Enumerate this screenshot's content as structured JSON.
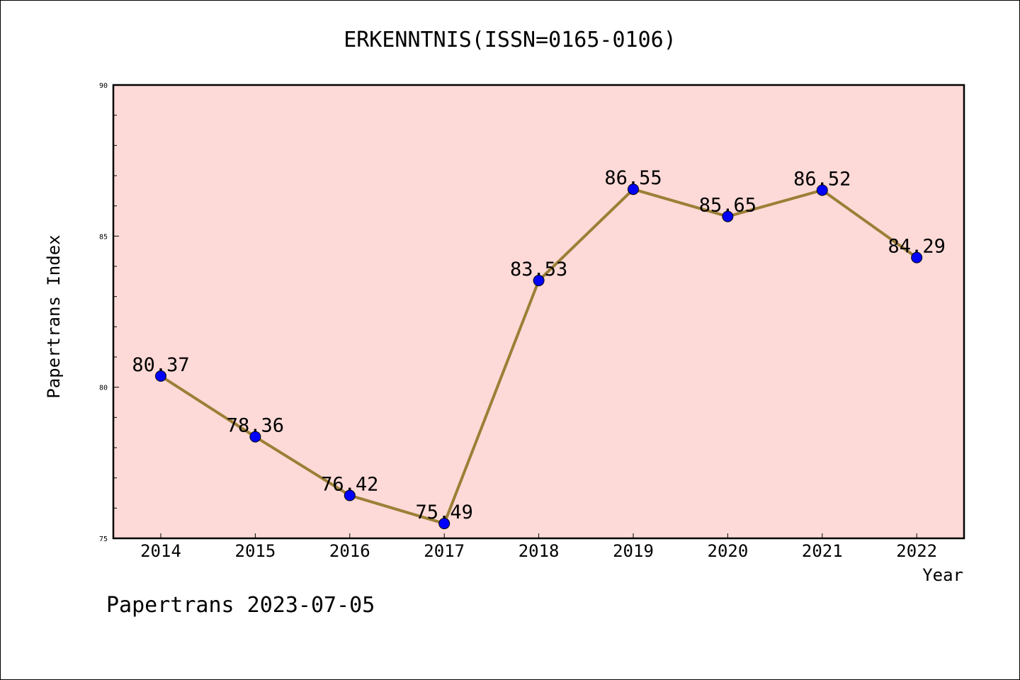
{
  "chart_data": {
    "type": "line",
    "title": "ERKENNTNIS(ISSN=0165-0106)",
    "xlabel": "Year",
    "ylabel": "Papertrans Index",
    "categories": [
      "2014",
      "2015",
      "2016",
      "2017",
      "2018",
      "2019",
      "2020",
      "2021",
      "2022"
    ],
    "values": [
      80.37,
      78.36,
      76.42,
      75.49,
      83.53,
      86.55,
      85.65,
      86.52,
      84.29
    ],
    "data_labels": [
      "80.37",
      "78.36",
      "76.42",
      "75.49",
      "83.53",
      "86.55",
      "85.65",
      "86.52",
      "84.29"
    ],
    "ylim": [
      75,
      90
    ],
    "yticks": [
      "75",
      "80",
      "85",
      "90"
    ],
    "grid": false,
    "legend": "none",
    "colors": {
      "plot_background": "#FDDAD7",
      "line": "#9C7F37",
      "marker": "#0000FF"
    }
  },
  "footer": "Papertrans 2023-07-05"
}
